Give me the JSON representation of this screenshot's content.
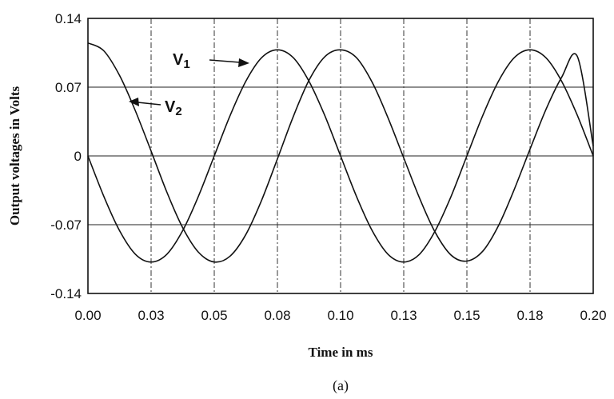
{
  "chart_data": {
    "type": "line",
    "title": "",
    "xlabel": "Time in ms",
    "ylabel": "Output voltages in Volts",
    "caption": "(a)",
    "xlim": [
      0,
      0.2
    ],
    "ylim": [
      -0.14,
      0.14
    ],
    "x_ticks": [
      "0.00",
      "0.03",
      "0.05",
      "0.08",
      "0.10",
      "0.13",
      "0.15",
      "0.18",
      "0.20"
    ],
    "x_tick_values": [
      0,
      0.025,
      0.05,
      0.075,
      0.1,
      0.125,
      0.15,
      0.175,
      0.2
    ],
    "y_ticks": [
      "0.14",
      "0.07",
      "0",
      "-0.07",
      "-0.14"
    ],
    "y_tick_values": [
      0.14,
      0.07,
      0,
      -0.07,
      -0.14
    ],
    "grid": true,
    "series": [
      {
        "name": "V1",
        "x": [
          0,
          0.00625,
          0.0125,
          0.01875,
          0.025,
          0.03125,
          0.0375,
          0.04375,
          0.05,
          0.05625,
          0.0625,
          0.06875,
          0.075,
          0.08125,
          0.0875,
          0.09375,
          0.1,
          0.10625,
          0.1125,
          0.11875,
          0.125,
          0.13125,
          0.1375,
          0.14375,
          0.15,
          0.15625,
          0.1625,
          0.16875,
          0.175,
          0.18125,
          0.1875,
          0.19375,
          0.2
        ],
        "y": [
          0,
          -0.041,
          -0.076,
          -0.1,
          -0.108,
          -0.1,
          -0.076,
          -0.041,
          0,
          0.041,
          0.076,
          0.1,
          0.108,
          0.1,
          0.076,
          0.041,
          0,
          -0.041,
          -0.076,
          -0.1,
          -0.108,
          -0.1,
          -0.076,
          -0.041,
          0,
          0.041,
          0.076,
          0.1,
          0.108,
          0.1,
          0.076,
          0.041,
          0
        ]
      },
      {
        "name": "V2",
        "x": [
          0,
          0.00625,
          0.0125,
          0.01875,
          0.025,
          0.03125,
          0.0375,
          0.04375,
          0.05,
          0.05625,
          0.0625,
          0.06875,
          0.075,
          0.08125,
          0.0875,
          0.09375,
          0.1,
          0.10625,
          0.1125,
          0.11875,
          0.125,
          0.13125,
          0.1375,
          0.14375,
          0.15,
          0.15625,
          0.1625,
          0.16875,
          0.175,
          0.18125,
          0.1875,
          0.19375,
          0.2
        ],
        "y": [
          0.115,
          0.107,
          0.082,
          0.046,
          0.005,
          -0.037,
          -0.073,
          -0.098,
          -0.108,
          -0.102,
          -0.08,
          -0.045,
          -0.003,
          0.04,
          0.077,
          0.101,
          0.108,
          0.1,
          0.075,
          0.039,
          -0.002,
          -0.043,
          -0.078,
          -0.101,
          -0.107,
          -0.097,
          -0.071,
          -0.034,
          0.007,
          0.047,
          0.08,
          0.101,
          0.01
        ]
      }
    ],
    "annotations": [
      {
        "label": "V",
        "subscript": "1",
        "target_series": "V1"
      },
      {
        "label": "V",
        "subscript": "2",
        "target_series": "V2"
      }
    ]
  }
}
